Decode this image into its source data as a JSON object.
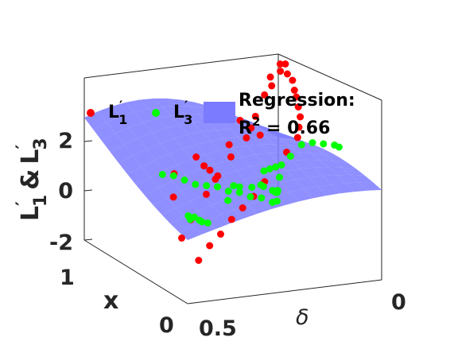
{
  "chart_data": {
    "type": "scatter",
    "view": "3d",
    "ylabel": "L′1 & L′3",
    "ylabel_parts": {
      "a": "L",
      "a_prime": "′",
      "a_sub": "1",
      "amp": "&",
      "b": "L",
      "b_prime": "′",
      "b_sub": "3"
    },
    "xlabel": "x",
    "zlabel": "δ",
    "x_ticks": [
      "0",
      "1"
    ],
    "delta_ticks": [
      "0.5",
      "0"
    ],
    "y_ticks": [
      "2",
      "0",
      "-2"
    ],
    "y_range": [
      -2.6,
      4.5
    ],
    "x_range": [
      0,
      1
    ],
    "delta_range": [
      0,
      0.6
    ],
    "grid": false,
    "legend_position": "top",
    "series": [
      {
        "name": "L′1",
        "label_main": "L",
        "label_prime": "′",
        "label_sub": "1",
        "color": "#ff0000",
        "points": [
          [
            0.05,
            0.55,
            -1.4
          ],
          [
            0.1,
            0.5,
            -1.1
          ],
          [
            0.15,
            0.45,
            -0.9
          ],
          [
            0.2,
            0.4,
            -0.6
          ],
          [
            0.25,
            0.35,
            -0.4
          ],
          [
            0.3,
            0.3,
            -0.2
          ],
          [
            0.35,
            0.25,
            0.1
          ],
          [
            0.4,
            0.2,
            0.4
          ],
          [
            0.45,
            0.15,
            0.7
          ],
          [
            0.5,
            0.1,
            1.0
          ],
          [
            0.55,
            0.08,
            1.2
          ],
          [
            0.6,
            0.06,
            1.4
          ],
          [
            0.65,
            0.05,
            1.6
          ],
          [
            0.7,
            0.04,
            1.8
          ],
          [
            0.75,
            0.03,
            1.9
          ],
          [
            0.8,
            0.02,
            2.1
          ],
          [
            0.85,
            0.02,
            2.2
          ],
          [
            0.9,
            0.01,
            2.4
          ],
          [
            0.95,
            0.01,
            2.3
          ],
          [
            0.98,
            0.0,
            2.0
          ],
          [
            0.12,
            0.58,
            -0.8
          ],
          [
            0.22,
            0.52,
            -0.5
          ],
          [
            0.32,
            0.44,
            0.0
          ],
          [
            0.42,
            0.38,
            0.2
          ],
          [
            0.52,
            0.3,
            0.6
          ],
          [
            0.62,
            0.22,
            0.9
          ],
          [
            0.72,
            0.16,
            1.3
          ],
          [
            0.82,
            0.1,
            1.7
          ],
          [
            0.92,
            0.05,
            2.0
          ],
          [
            0.97,
            0.03,
            1.6
          ],
          [
            0.9,
            0.15,
            0.8
          ],
          [
            0.85,
            0.2,
            0.2
          ],
          [
            0.95,
            0.1,
            0.4
          ],
          [
            0.88,
            0.25,
            -0.6
          ],
          [
            0.78,
            0.3,
            -0.2
          ],
          [
            0.96,
            0.2,
            -1.0
          ],
          [
            0.92,
            0.35,
            -1.4
          ],
          [
            0.8,
            0.12,
            0.5
          ],
          [
            0.7,
            0.35,
            0.3
          ],
          [
            0.6,
            0.45,
            0.1
          ]
        ]
      },
      {
        "name": "L′3",
        "label_main": "L",
        "label_prime": "′",
        "label_sub": "3",
        "color": "#00ff00",
        "points": [
          [
            0.05,
            0.3,
            0.9
          ],
          [
            0.1,
            0.25,
            1.4
          ],
          [
            0.15,
            0.2,
            1.6
          ],
          [
            0.2,
            0.15,
            1.5
          ],
          [
            0.25,
            0.1,
            1.3
          ],
          [
            0.3,
            0.05,
            1.1
          ],
          [
            0.35,
            0.02,
            0.9
          ],
          [
            0.4,
            0.55,
            0.6
          ],
          [
            0.45,
            0.5,
            0.4
          ],
          [
            0.5,
            0.45,
            0.1
          ],
          [
            0.55,
            0.4,
            -0.2
          ],
          [
            0.6,
            0.35,
            -0.4
          ],
          [
            0.65,
            0.3,
            -0.6
          ],
          [
            0.7,
            0.25,
            -0.9
          ],
          [
            0.75,
            0.2,
            -1.1
          ],
          [
            0.8,
            0.15,
            -1.4
          ],
          [
            0.85,
            0.1,
            -1.6
          ],
          [
            0.9,
            0.05,
            -1.9
          ],
          [
            0.95,
            0.02,
            -2.0
          ],
          [
            0.98,
            0.01,
            -1.8
          ],
          [
            0.08,
            0.45,
            0.3
          ],
          [
            0.18,
            0.4,
            0.5
          ],
          [
            0.28,
            0.35,
            0.2
          ],
          [
            0.38,
            0.28,
            -0.1
          ],
          [
            0.48,
            0.22,
            -0.3
          ],
          [
            0.58,
            0.18,
            -0.6
          ],
          [
            0.68,
            0.12,
            -1.0
          ],
          [
            0.78,
            0.08,
            -1.3
          ],
          [
            0.88,
            0.04,
            -1.5
          ],
          [
            0.96,
            0.02,
            -1.7
          ],
          [
            0.15,
            0.55,
            -0.2
          ],
          [
            0.25,
            0.5,
            -0.5
          ],
          [
            0.35,
            0.48,
            -0.8
          ],
          [
            0.45,
            0.42,
            -1.1
          ],
          [
            0.55,
            0.38,
            -1.4
          ],
          [
            0.65,
            0.33,
            -1.7
          ],
          [
            0.2,
            0.3,
            0.8
          ],
          [
            0.3,
            0.25,
            0.6
          ],
          [
            0.4,
            0.2,
            0.4
          ],
          [
            0.5,
            0.15,
            0.2
          ]
        ]
      }
    ],
    "regression": {
      "name": "Regression:",
      "r2_label": "R",
      "r2_sup": "2",
      "r2_value": " = 0.66",
      "r2": 0.66,
      "color": "#7b7bff"
    }
  }
}
